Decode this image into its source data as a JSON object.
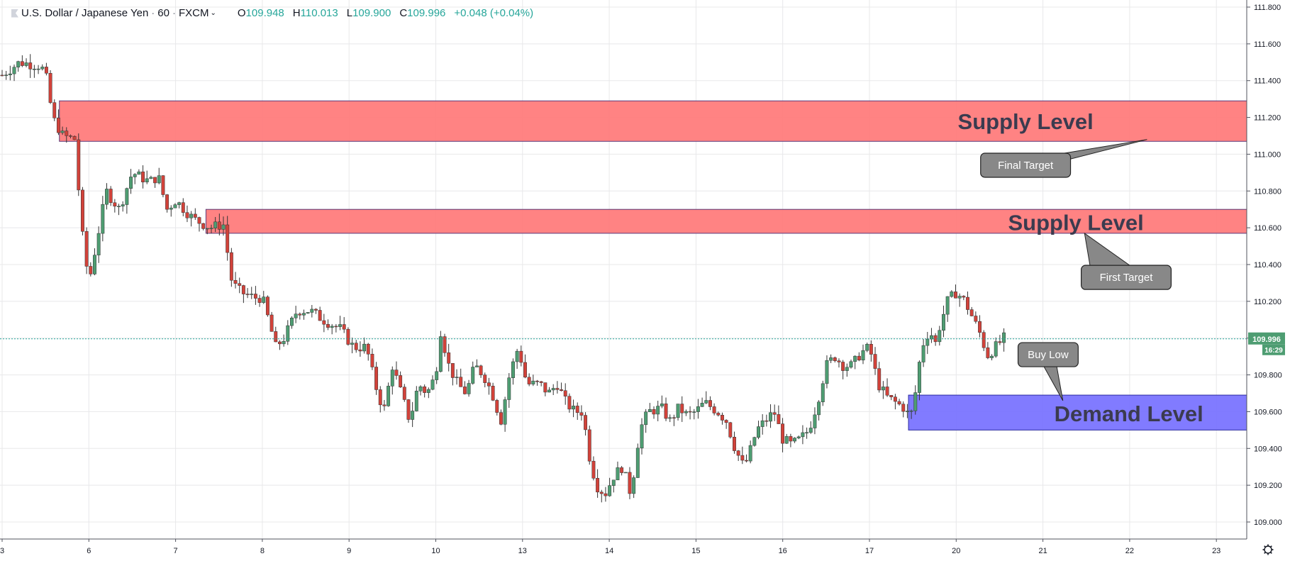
{
  "header": {
    "symbol": "U.S. Dollar / Japanese Yen",
    "interval": "60",
    "source": "FXCM",
    "open_key": "O",
    "open": "109.948",
    "high_key": "H",
    "high": "110.013",
    "low_key": "L",
    "low": "109.900",
    "close_key": "C",
    "close": "109.996",
    "change": "+0.048 (+0.04%)"
  },
  "price_label": {
    "value": "109.996",
    "countdown": "16:29"
  },
  "colors": {
    "up": "#26a69a",
    "up_fill": "#4e9d72",
    "down": "#ef5350",
    "down_fill": "#d2423a",
    "wick": "#333333",
    "grid": "#e8e8ea",
    "axis_text": "#131722",
    "supply_fill": "#ff7c7c",
    "demand_fill": "#7a74ff",
    "current_line": "#26a69a",
    "callout_fill": "#888888",
    "callout_text": "#ffffff"
  },
  "chart_data": {
    "type": "candlestick",
    "title": "",
    "ylim": [
      108.85,
      111.85
    ],
    "y_ticks": [
      109.0,
      109.2,
      109.4,
      109.6,
      109.8,
      110.0,
      110.2,
      110.4,
      110.6,
      110.8,
      111.0,
      111.2,
      111.4,
      111.6,
      111.8
    ],
    "y_tick_labels": [
      "109.000",
      "109.200",
      "109.400",
      "109.600",
      "109.800",
      "110.000",
      "110.200",
      "110.400",
      "110.600",
      "110.800",
      "111.000",
      "111.200",
      "111.400",
      "111.600",
      "111.800"
    ],
    "x_ticks": [
      "3",
      "6",
      "7",
      "8",
      "9",
      "10",
      "13",
      "14",
      "15",
      "16",
      "17",
      "20",
      "21",
      "22",
      "23"
    ],
    "x_tick_positions": [
      0,
      1,
      2,
      3,
      4,
      5,
      6,
      7,
      8,
      9,
      10,
      11,
      12,
      13,
      14
    ],
    "xlim": [
      0,
      14.42
    ],
    "current_price": 109.996,
    "price_path": [
      [
        0.0,
        111.43
      ],
      [
        0.2,
        111.5
      ],
      [
        0.45,
        111.48
      ],
      [
        0.52,
        111.4
      ],
      [
        0.58,
        111.2
      ],
      [
        0.7,
        111.1
      ],
      [
        0.85,
        111.08
      ],
      [
        0.9,
        110.65
      ],
      [
        1.0,
        110.3
      ],
      [
        1.1,
        110.55
      ],
      [
        1.2,
        110.8
      ],
      [
        1.35,
        110.7
      ],
      [
        1.5,
        110.9
      ],
      [
        1.7,
        110.85
      ],
      [
        1.8,
        110.88
      ],
      [
        1.9,
        110.7
      ],
      [
        2.0,
        110.75
      ],
      [
        2.2,
        110.65
      ],
      [
        2.4,
        110.6
      ],
      [
        2.55,
        110.62
      ],
      [
        2.65,
        110.3
      ],
      [
        2.75,
        110.25
      ],
      [
        2.9,
        110.22
      ],
      [
        3.0,
        110.22
      ],
      [
        3.1,
        110.05
      ],
      [
        3.15,
        109.95
      ],
      [
        3.25,
        110.0
      ],
      [
        3.4,
        110.15
      ],
      [
        3.55,
        110.15
      ],
      [
        3.7,
        110.1
      ],
      [
        3.9,
        110.05
      ],
      [
        4.05,
        109.95
      ],
      [
        4.2,
        109.95
      ],
      [
        4.3,
        109.75
      ],
      [
        4.4,
        109.6
      ],
      [
        4.5,
        109.85
      ],
      [
        4.6,
        109.7
      ],
      [
        4.7,
        109.55
      ],
      [
        4.8,
        109.75
      ],
      [
        4.9,
        109.7
      ],
      [
        5.0,
        109.8
      ],
      [
        5.05,
        110.05
      ],
      [
        5.15,
        109.85
      ],
      [
        5.25,
        109.75
      ],
      [
        5.35,
        109.7
      ],
      [
        5.45,
        109.85
      ],
      [
        5.55,
        109.8
      ],
      [
        5.65,
        109.7
      ],
      [
        5.75,
        109.55
      ],
      [
        5.85,
        109.8
      ],
      [
        5.95,
        109.95
      ],
      [
        6.05,
        109.75
      ],
      [
        6.2,
        109.75
      ],
      [
        6.3,
        109.7
      ],
      [
        6.4,
        109.75
      ],
      [
        6.5,
        109.65
      ],
      [
        6.6,
        109.6
      ],
      [
        6.7,
        109.6
      ],
      [
        6.75,
        109.4
      ],
      [
        6.85,
        109.2
      ],
      [
        6.95,
        109.15
      ],
      [
        7.05,
        109.25
      ],
      [
        7.15,
        109.3
      ],
      [
        7.25,
        109.15
      ],
      [
        7.35,
        109.5
      ],
      [
        7.45,
        109.6
      ],
      [
        7.6,
        109.62
      ],
      [
        7.7,
        109.55
      ],
      [
        7.8,
        109.62
      ],
      [
        7.9,
        109.58
      ],
      [
        8.0,
        109.6
      ],
      [
        8.1,
        109.65
      ],
      [
        8.25,
        109.6
      ],
      [
        8.35,
        109.55
      ],
      [
        8.45,
        109.4
      ],
      [
        8.55,
        109.3
      ],
      [
        8.6,
        109.35
      ],
      [
        8.7,
        109.5
      ],
      [
        8.8,
        109.55
      ],
      [
        8.9,
        109.6
      ],
      [
        9.0,
        109.45
      ],
      [
        9.1,
        109.42
      ],
      [
        9.2,
        109.45
      ],
      [
        9.3,
        109.5
      ],
      [
        9.4,
        109.65
      ],
      [
        9.5,
        109.85
      ],
      [
        9.6,
        109.9
      ],
      [
        9.7,
        109.85
      ],
      [
        9.8,
        109.85
      ],
      [
        9.9,
        109.92
      ],
      [
        10.0,
        109.95
      ],
      [
        10.1,
        109.75
      ],
      [
        10.2,
        109.68
      ],
      [
        10.3,
        109.65
      ],
      [
        10.4,
        109.62
      ],
      [
        10.45,
        109.58
      ],
      [
        10.5,
        109.6
      ],
      [
        10.6,
        109.95
      ],
      [
        10.7,
        110.05
      ],
      [
        10.75,
        109.95
      ],
      [
        10.8,
        110.05
      ],
      [
        10.9,
        110.2
      ],
      [
        11.0,
        110.25
      ],
      [
        11.1,
        110.2
      ],
      [
        11.2,
        110.1
      ],
      [
        11.3,
        110.0
      ],
      [
        11.35,
        109.9
      ],
      [
        11.45,
        109.95
      ],
      [
        11.55,
        110.0
      ]
    ],
    "zones": [
      {
        "kind": "supply",
        "top": 111.29,
        "bottom": 111.07,
        "x_start": 0.66,
        "x_end": 14.42
      },
      {
        "kind": "supply",
        "top": 110.7,
        "bottom": 110.57,
        "x_start": 2.35,
        "x_end": 14.42
      },
      {
        "kind": "demand",
        "top": 109.69,
        "bottom": 109.5,
        "x_start": 10.45,
        "x_end": 14.42
      }
    ],
    "annotations": [
      {
        "text": "Supply Level",
        "x": 11.8,
        "y": 111.18
      },
      {
        "text": "Supply Level",
        "x": 12.38,
        "y": 110.63
      },
      {
        "text": "Demand Level",
        "x": 12.99,
        "y": 109.59
      }
    ],
    "callouts": [
      {
        "text": "Final Target",
        "box_x": 11.8,
        "box_y": 110.94,
        "tip_x": 13.2,
        "tip_y": 111.08
      },
      {
        "text": "First Target",
        "box_x": 12.96,
        "box_y": 110.33,
        "tip_x": 12.48,
        "tip_y": 110.57
      },
      {
        "text": "Buy Low",
        "box_x": 12.06,
        "box_y": 109.91,
        "tip_x": 12.23,
        "tip_y": 109.66
      }
    ]
  }
}
